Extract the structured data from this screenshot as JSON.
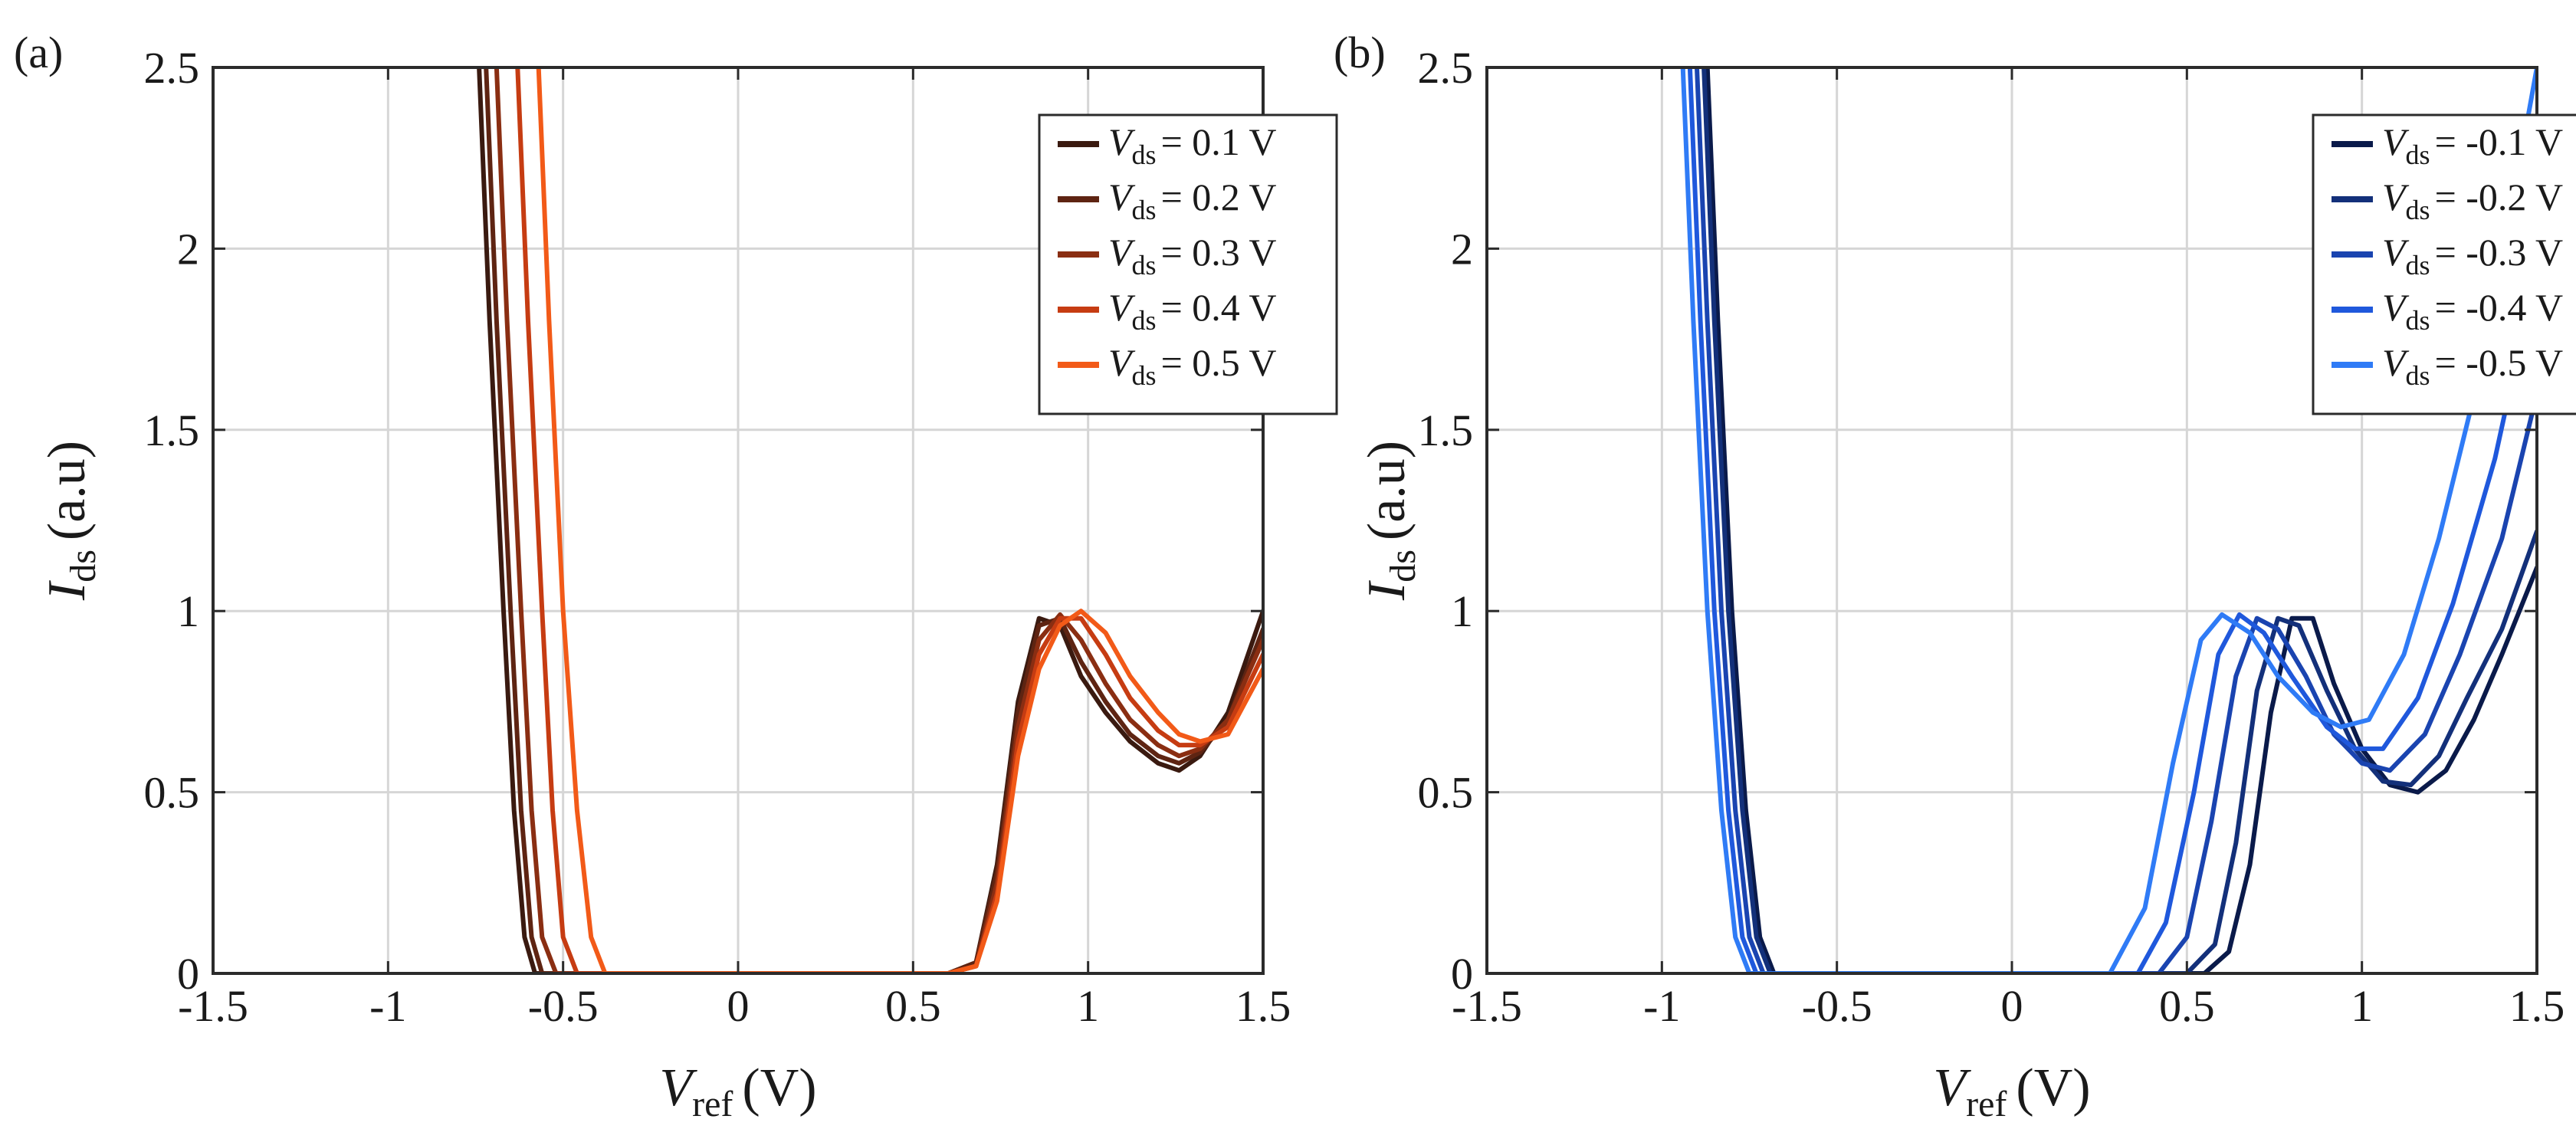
{
  "chart_data": [
    {
      "panel_label": "(a)",
      "type": "line",
      "xlabel": "V",
      "xlabel_sub": "ref",
      "xlabel_unit": "(V)",
      "ylabel": "I",
      "ylabel_sub": "ds",
      "ylabel_unit": "(a.u)",
      "xlim": [
        -1.5,
        1.5
      ],
      "ylim": [
        0,
        2.5
      ],
      "xticks": [
        -1.5,
        -1,
        -0.5,
        0,
        0.5,
        1,
        1.5
      ],
      "xtick_labels": [
        "-1.5",
        "-1",
        "-0.5",
        "0",
        "0.5",
        "1",
        "1.5"
      ],
      "yticks": [
        0,
        0.5,
        1,
        1.5,
        2,
        2.5
      ],
      "ytick_labels": [
        "0",
        "0.5",
        "1",
        "1.5",
        "2",
        "2.5"
      ],
      "grid": true,
      "legend_position": "top-right",
      "legend_var": "V",
      "legend_sub": "ds",
      "series": [
        {
          "name": "0.1 V",
          "legend_value": "= 0.1 V",
          "color": "#3a1a10",
          "x": [
            -0.74,
            -0.71,
            -0.67,
            -0.64,
            -0.61,
            -0.58,
            -0.3,
            0.0,
            0.3,
            0.6,
            0.68,
            0.74,
            0.8,
            0.86,
            0.92,
            0.98,
            1.05,
            1.12,
            1.2,
            1.26,
            1.32,
            1.4,
            1.5
          ],
          "y": [
            2.5,
            1.8,
            1.0,
            0.45,
            0.1,
            0.0,
            0.0,
            0.0,
            0.0,
            0.0,
            0.03,
            0.3,
            0.75,
            0.98,
            0.96,
            0.82,
            0.72,
            0.64,
            0.58,
            0.56,
            0.6,
            0.72,
            1.0
          ]
        },
        {
          "name": "0.2 V",
          "legend_value": "= 0.2 V",
          "color": "#5e2412",
          "x": [
            -0.72,
            -0.69,
            -0.65,
            -0.62,
            -0.59,
            -0.56,
            -0.3,
            0.0,
            0.3,
            0.6,
            0.68,
            0.74,
            0.8,
            0.86,
            0.92,
            0.98,
            1.05,
            1.12,
            1.2,
            1.26,
            1.32,
            1.4,
            1.5
          ],
          "y": [
            2.5,
            1.8,
            1.0,
            0.45,
            0.1,
            0.0,
            0.0,
            0.0,
            0.0,
            0.0,
            0.03,
            0.28,
            0.72,
            0.96,
            0.98,
            0.86,
            0.75,
            0.66,
            0.6,
            0.58,
            0.61,
            0.7,
            0.95
          ]
        },
        {
          "name": "0.3 V",
          "legend_value": "= 0.3 V",
          "color": "#8a2e12",
          "x": [
            -0.69,
            -0.66,
            -0.62,
            -0.59,
            -0.56,
            -0.52,
            -0.3,
            0.0,
            0.3,
            0.6,
            0.68,
            0.74,
            0.8,
            0.86,
            0.92,
            0.98,
            1.05,
            1.12,
            1.2,
            1.26,
            1.32,
            1.4,
            1.5
          ],
          "y": [
            2.5,
            1.8,
            1.0,
            0.45,
            0.1,
            0.0,
            0.0,
            0.0,
            0.0,
            0.0,
            0.02,
            0.25,
            0.68,
            0.92,
            0.99,
            0.92,
            0.8,
            0.7,
            0.63,
            0.6,
            0.62,
            0.7,
            0.92
          ]
        },
        {
          "name": "0.4 V",
          "legend_value": "= 0.4 V",
          "color": "#c63c12",
          "x": [
            -0.63,
            -0.6,
            -0.56,
            -0.53,
            -0.5,
            -0.46,
            -0.3,
            0.0,
            0.3,
            0.6,
            0.68,
            0.74,
            0.8,
            0.86,
            0.92,
            0.98,
            1.05,
            1.12,
            1.2,
            1.26,
            1.32,
            1.4,
            1.5
          ],
          "y": [
            2.5,
            1.8,
            1.0,
            0.45,
            0.1,
            0.0,
            0.0,
            0.0,
            0.0,
            0.0,
            0.02,
            0.22,
            0.64,
            0.88,
            0.98,
            0.98,
            0.88,
            0.76,
            0.67,
            0.63,
            0.63,
            0.68,
            0.88
          ]
        },
        {
          "name": "0.5 V",
          "legend_value": "= 0.5 V",
          "color": "#f25a18",
          "x": [
            -0.57,
            -0.54,
            -0.5,
            -0.46,
            -0.42,
            -0.38,
            -0.3,
            0.0,
            0.3,
            0.6,
            0.68,
            0.74,
            0.8,
            0.86,
            0.92,
            0.98,
            1.05,
            1.12,
            1.2,
            1.26,
            1.32,
            1.4,
            1.5
          ],
          "y": [
            2.5,
            1.8,
            1.0,
            0.45,
            0.1,
            0.0,
            0.0,
            0.0,
            0.0,
            0.0,
            0.02,
            0.2,
            0.6,
            0.84,
            0.96,
            1.0,
            0.94,
            0.82,
            0.72,
            0.66,
            0.64,
            0.66,
            0.84
          ]
        }
      ]
    },
    {
      "panel_label": "(b)",
      "type": "line",
      "xlabel": "V",
      "xlabel_sub": "ref",
      "xlabel_unit": "(V)",
      "ylabel": "I",
      "ylabel_sub": "ds",
      "ylabel_unit": "(a.u)",
      "xlim": [
        -1.5,
        1.5
      ],
      "ylim": [
        0,
        2.5
      ],
      "xticks": [
        -1.5,
        -1,
        -0.5,
        0,
        0.5,
        1,
        1.5
      ],
      "xtick_labels": [
        "-1.5",
        "-1",
        "-0.5",
        "0",
        "0.5",
        "1",
        "1.5"
      ],
      "yticks": [
        0,
        0.5,
        1,
        1.5,
        2,
        2.5
      ],
      "ytick_labels": [
        "0",
        "0.5",
        "1",
        "1.5",
        "2",
        "2.5"
      ],
      "grid": true,
      "legend_position": "top-right",
      "legend_var": "V",
      "legend_sub": "ds",
      "series": [
        {
          "name": "-0.1 V",
          "legend_value": "= -0.1 V",
          "color": "#0a1a4a",
          "x": [
            -0.87,
            -0.84,
            -0.8,
            -0.76,
            -0.72,
            -0.68,
            -0.4,
            0.0,
            0.4,
            0.55,
            0.62,
            0.68,
            0.74,
            0.8,
            0.86,
            0.92,
            1.0,
            1.08,
            1.16,
            1.24,
            1.32,
            1.4,
            1.5
          ],
          "y": [
            2.5,
            1.8,
            1.0,
            0.45,
            0.1,
            0.0,
            0.0,
            0.0,
            0.0,
            0.0,
            0.06,
            0.3,
            0.72,
            0.98,
            0.98,
            0.8,
            0.62,
            0.52,
            0.5,
            0.56,
            0.7,
            0.88,
            1.12
          ]
        },
        {
          "name": "-0.2 V",
          "legend_value": "= -0.2 V",
          "color": "#13307a",
          "x": [
            -0.88,
            -0.85,
            -0.81,
            -0.77,
            -0.73,
            -0.69,
            -0.4,
            0.0,
            0.4,
            0.5,
            0.58,
            0.64,
            0.7,
            0.76,
            0.82,
            0.9,
            0.98,
            1.06,
            1.14,
            1.22,
            1.3,
            1.4,
            1.5
          ],
          "y": [
            2.5,
            1.8,
            1.0,
            0.45,
            0.1,
            0.0,
            0.0,
            0.0,
            0.0,
            0.0,
            0.08,
            0.36,
            0.78,
            0.98,
            0.96,
            0.78,
            0.62,
            0.53,
            0.52,
            0.6,
            0.76,
            0.95,
            1.22
          ]
        },
        {
          "name": "-0.3 V",
          "legend_value": "= -0.3 V",
          "color": "#1a44b0",
          "x": [
            -0.9,
            -0.87,
            -0.83,
            -0.79,
            -0.75,
            -0.71,
            -0.4,
            0.0,
            0.3,
            0.42,
            0.5,
            0.57,
            0.64,
            0.7,
            0.76,
            0.84,
            0.92,
            1.0,
            1.08,
            1.18,
            1.28,
            1.4,
            1.5
          ],
          "y": [
            2.5,
            1.8,
            1.0,
            0.45,
            0.1,
            0.0,
            0.0,
            0.0,
            0.0,
            0.0,
            0.1,
            0.42,
            0.82,
            0.98,
            0.95,
            0.82,
            0.66,
            0.58,
            0.56,
            0.66,
            0.88,
            1.2,
            1.6
          ]
        },
        {
          "name": "-0.4 V",
          "legend_value": "= -0.4 V",
          "color": "#1f58dc",
          "x": [
            -0.92,
            -0.89,
            -0.85,
            -0.81,
            -0.77,
            -0.73,
            -0.4,
            0.0,
            0.25,
            0.36,
            0.44,
            0.52,
            0.59,
            0.65,
            0.72,
            0.8,
            0.9,
            0.98,
            1.06,
            1.16,
            1.26,
            1.38,
            1.5
          ],
          "y": [
            2.5,
            1.8,
            1.0,
            0.45,
            0.1,
            0.0,
            0.0,
            0.0,
            0.0,
            0.0,
            0.14,
            0.5,
            0.88,
            0.99,
            0.94,
            0.82,
            0.68,
            0.62,
            0.62,
            0.76,
            1.02,
            1.42,
            1.95
          ]
        },
        {
          "name": "-0.5 V",
          "legend_value": "= -0.5 V",
          "color": "#2f7bf6",
          "x": [
            -0.94,
            -0.91,
            -0.87,
            -0.83,
            -0.79,
            -0.75,
            -0.4,
            0.0,
            0.18,
            0.28,
            0.38,
            0.46,
            0.54,
            0.6,
            0.68,
            0.76,
            0.86,
            0.94,
            1.02,
            1.12,
            1.22,
            1.36,
            1.5
          ],
          "y": [
            2.5,
            1.8,
            1.0,
            0.45,
            0.1,
            0.0,
            0.0,
            0.0,
            0.0,
            0.0,
            0.18,
            0.58,
            0.92,
            0.99,
            0.94,
            0.82,
            0.72,
            0.68,
            0.7,
            0.88,
            1.2,
            1.75,
            2.5
          ]
        }
      ]
    }
  ]
}
